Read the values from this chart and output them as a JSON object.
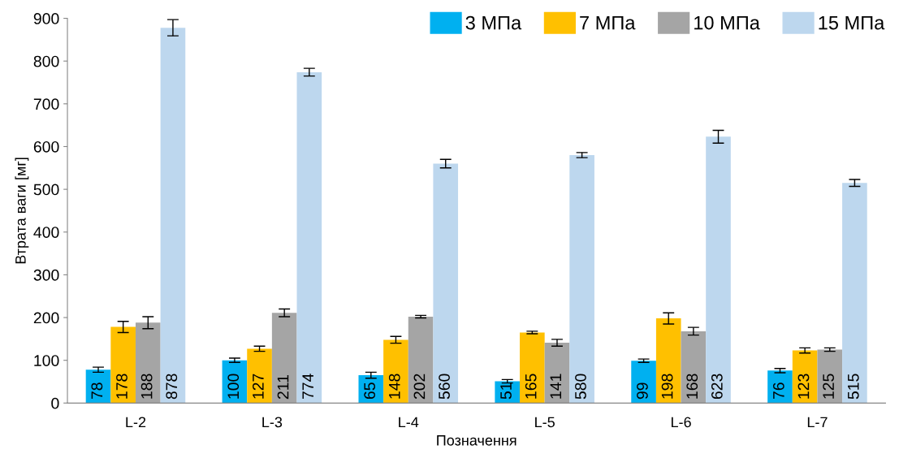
{
  "chart_data": {
    "type": "bar",
    "xlabel": "Позначення",
    "ylabel": "Втрата ваги [мг]",
    "categories": [
      "L-2",
      "L-3",
      "L-4",
      "L-5",
      "L-6",
      "L-7"
    ],
    "series": [
      {
        "name": "3 МПа",
        "color": "#00b0f0",
        "values": [
          78,
          100,
          65,
          51,
          99,
          76
        ],
        "errors": [
          6,
          5,
          7,
          4,
          4,
          5
        ]
      },
      {
        "name": "7 МПа",
        "color": "#ffc000",
        "values": [
          178,
          127,
          148,
          165,
          198,
          123
        ],
        "errors": [
          13,
          6,
          8,
          3,
          13,
          6
        ]
      },
      {
        "name": "10 МПа",
        "color": "#a5a5a5",
        "values": [
          188,
          211,
          202,
          141,
          168,
          125
        ],
        "errors": [
          14,
          9,
          3,
          8,
          9,
          4
        ]
      },
      {
        "name": "15 МПа",
        "color": "#bdd7ee",
        "values": [
          878,
          774,
          560,
          580,
          623,
          515
        ],
        "errors": [
          19,
          9,
          10,
          6,
          15,
          8
        ]
      }
    ],
    "ylim": [
      0,
      900
    ],
    "yticks": [
      0,
      100,
      200,
      300,
      400,
      500,
      600,
      700,
      800,
      900
    ],
    "data_labels": true,
    "grid": false,
    "legend": "top right"
  }
}
